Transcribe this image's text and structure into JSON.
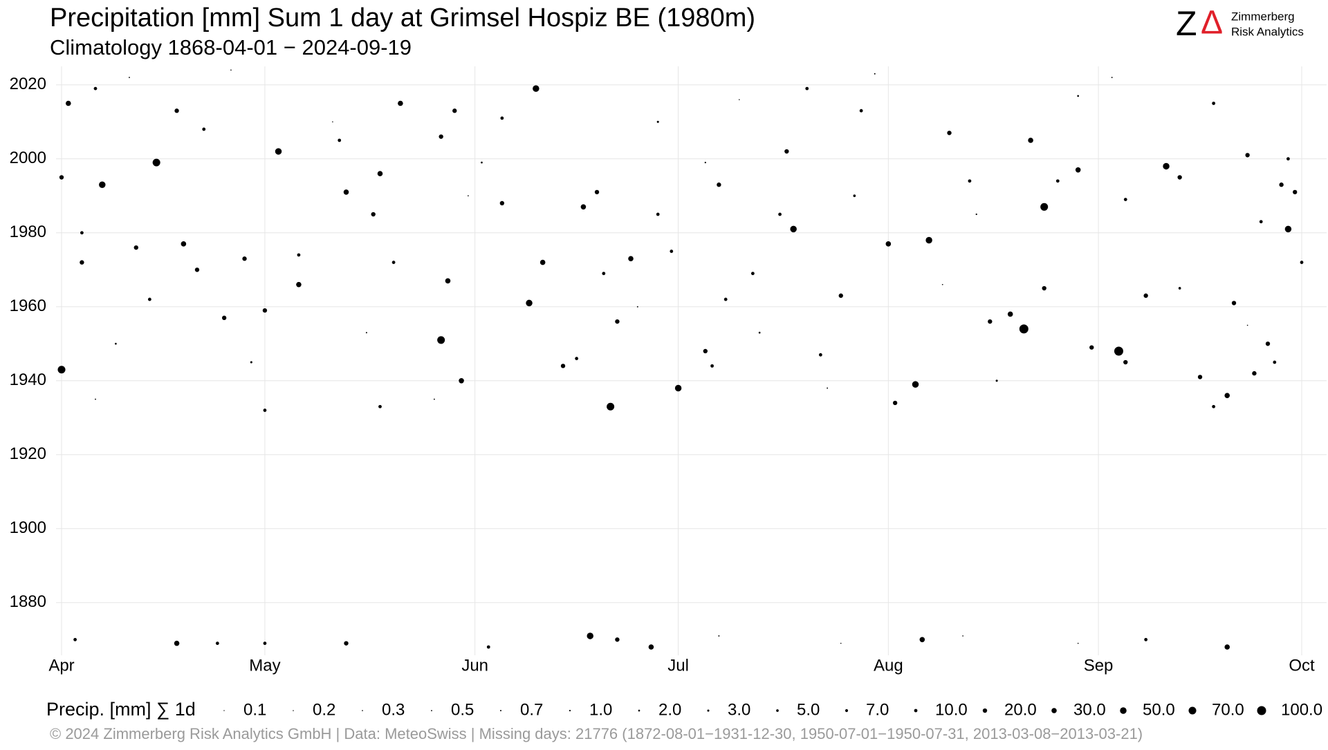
{
  "chart_data": {
    "type": "scatter",
    "title": "Precipitation [mm] Sum 1 day at Grimsel Hospiz  BE (1980m)",
    "subtitle": "Climatology 1868-04-01 − 2024-09-19",
    "logo": {
      "z": "Z",
      "delta": "Δ",
      "line1": "Zimmerberg",
      "line2": "Risk Analytics"
    },
    "footer": "©  2024 Zimmerberg Risk Analytics GmbH | Data: MeteoSwiss | Missing days: 21776 (1872-08-01−1931-12-30, 1950-07-01−1950-07-31, 2013-03-08−2013-03-21)",
    "color": "#000000",
    "grid": true,
    "xlim": [
      0,
      183
    ],
    "xticks": [
      {
        "value": 0,
        "label": "Apr"
      },
      {
        "value": 30,
        "label": "May"
      },
      {
        "value": 61,
        "label": "Jun"
      },
      {
        "value": 91,
        "label": "Jul"
      },
      {
        "value": 122,
        "label": "Aug"
      },
      {
        "value": 153,
        "label": "Sep"
      },
      {
        "value": 183,
        "label": "Oct"
      }
    ],
    "ylim": [
      1868,
      2025
    ],
    "yticks": [
      1880,
      1900,
      1920,
      1940,
      1960,
      1980,
      2000,
      2020
    ],
    "size_legend": {
      "title": "Precip. [mm] ∑ 1d",
      "values": [
        0.1,
        0.2,
        0.3,
        0.5,
        0.7,
        {
          "value": 1,
          "label": "1.0"
        },
        {
          "value": 2,
          "label": "2.0"
        },
        {
          "value": 3,
          "label": "3.0"
        },
        {
          "value": 5,
          "label": "5.0"
        },
        {
          "value": 7,
          "label": "7.0"
        },
        {
          "value": 10,
          "label": "10.0"
        },
        {
          "value": 20,
          "label": "20.0"
        },
        {
          "value": 30,
          "label": "30.0"
        },
        {
          "value": 50,
          "label": "50.0"
        },
        {
          "value": 70,
          "label": "70.0"
        },
        {
          "value": 100,
          "label": "100.0"
        }
      ]
    },
    "x": [
      0,
      1,
      14,
      6,
      32,
      70,
      81,
      142,
      156,
      128,
      108,
      145,
      91,
      126,
      56,
      69,
      163,
      181,
      0,
      3,
      3,
      5,
      11,
      13,
      18,
      20,
      24,
      27,
      17,
      21,
      30,
      35,
      35,
      41,
      42,
      46,
      47,
      49,
      50,
      47,
      58,
      57,
      59,
      56,
      65,
      71,
      77,
      76,
      74,
      79,
      84,
      80,
      90,
      82,
      88,
      95,
      96,
      98,
      97,
      102,
      107,
      106,
      112,
      115,
      118,
      122,
      123,
      131,
      134,
      137,
      140,
      143,
      145,
      150,
      147,
      152,
      157,
      157,
      160,
      165,
      168,
      170,
      172,
      173,
      175,
      177,
      178,
      176,
      180,
      182,
      183,
      181,
      179,
      170,
      30,
      65,
      110,
      2,
      17,
      30,
      42,
      78,
      82,
      87,
      127,
      160,
      172,
      23,
      63,
      10,
      25,
      40,
      60,
      85,
      100,
      113,
      130,
      155,
      175,
      45,
      55,
      95,
      120,
      135,
      8,
      28,
      62,
      88,
      103,
      117,
      138,
      150,
      165,
      5,
      133,
      97,
      115,
      150
    ],
    "values": [
      1943,
      2015,
      1999,
      1993,
      2002,
      2019,
      1933,
      1954,
      1948,
      1978,
      1981,
      1987,
      1938,
      1939,
      1951,
      1961,
      1998,
      1981,
      1995,
      1972,
      1980,
      2019,
      1976,
      1962,
      1977,
      1970,
      1957,
      1973,
      2013,
      2008,
      1959,
      1966,
      1974,
      2005,
      1991,
      1985,
      1996,
      1972,
      2015,
      1933,
      2013,
      1967,
      1940,
      2006,
      1988,
      1972,
      1987,
      1946,
      1944,
      1991,
      1973,
      1969,
      1975,
      1956,
      1985,
      1948,
      1944,
      1962,
      1993,
      1969,
      2002,
      1985,
      1947,
      1963,
      2013,
      1977,
      1934,
      2007,
      1994,
      1956,
      1958,
      2005,
      1965,
      1997,
      1994,
      1949,
      1945,
      1989,
      1963,
      1995,
      1941,
      2015,
      1936,
      1961,
      2001,
      1983,
      1950,
      1942,
      1993,
      1991,
      1972,
      2000,
      1945,
      1933,
      1932,
      2011,
      2019,
      1870,
      1869,
      1869,
      1869,
      1871,
      1870,
      1868,
      1870,
      1870,
      1868,
      1869,
      1868,
      2022,
      2024,
      2010,
      1990,
      1960,
      2016,
      1938,
      1966,
      2022,
      1955,
      1953,
      1935,
      1999,
      2023,
      1985,
      1950,
      1945,
      1999,
      2010,
      1953,
      1990,
      1940,
      2017,
      1965,
      1935,
      1871,
      1871,
      1869,
      1869
    ],
    "sizes": [
      70,
      30,
      70,
      50,
      50,
      50,
      70,
      100,
      100,
      50,
      50,
      70,
      50,
      50,
      70,
      50,
      50,
      50,
      20,
      20,
      10,
      10,
      20,
      10,
      30,
      20,
      20,
      20,
      20,
      10,
      20,
      30,
      10,
      10,
      30,
      20,
      30,
      10,
      30,
      10,
      20,
      30,
      30,
      20,
      20,
      30,
      30,
      10,
      20,
      20,
      30,
      10,
      10,
      20,
      10,
      20,
      10,
      10,
      20,
      10,
      20,
      10,
      10,
      20,
      10,
      30,
      20,
      20,
      10,
      20,
      30,
      30,
      20,
      30,
      10,
      20,
      20,
      10,
      20,
      20,
      20,
      10,
      30,
      20,
      20,
      10,
      20,
      20,
      20,
      20,
      10,
      10,
      10,
      10,
      10,
      10,
      10,
      10,
      30,
      10,
      20,
      50,
      20,
      30,
      30,
      10,
      30,
      10,
      10,
      0.5,
      0.3,
      0.2,
      0.3,
      0.5,
      0.2,
      0.5,
      0.3,
      0.5,
      0.3,
      0.7,
      0.5,
      1,
      0.7,
      1,
      2,
      3,
      2,
      3,
      2,
      5,
      3,
      2,
      5,
      0.5,
      0.3,
      0.5,
      0.2,
      0.3
    ]
  }
}
